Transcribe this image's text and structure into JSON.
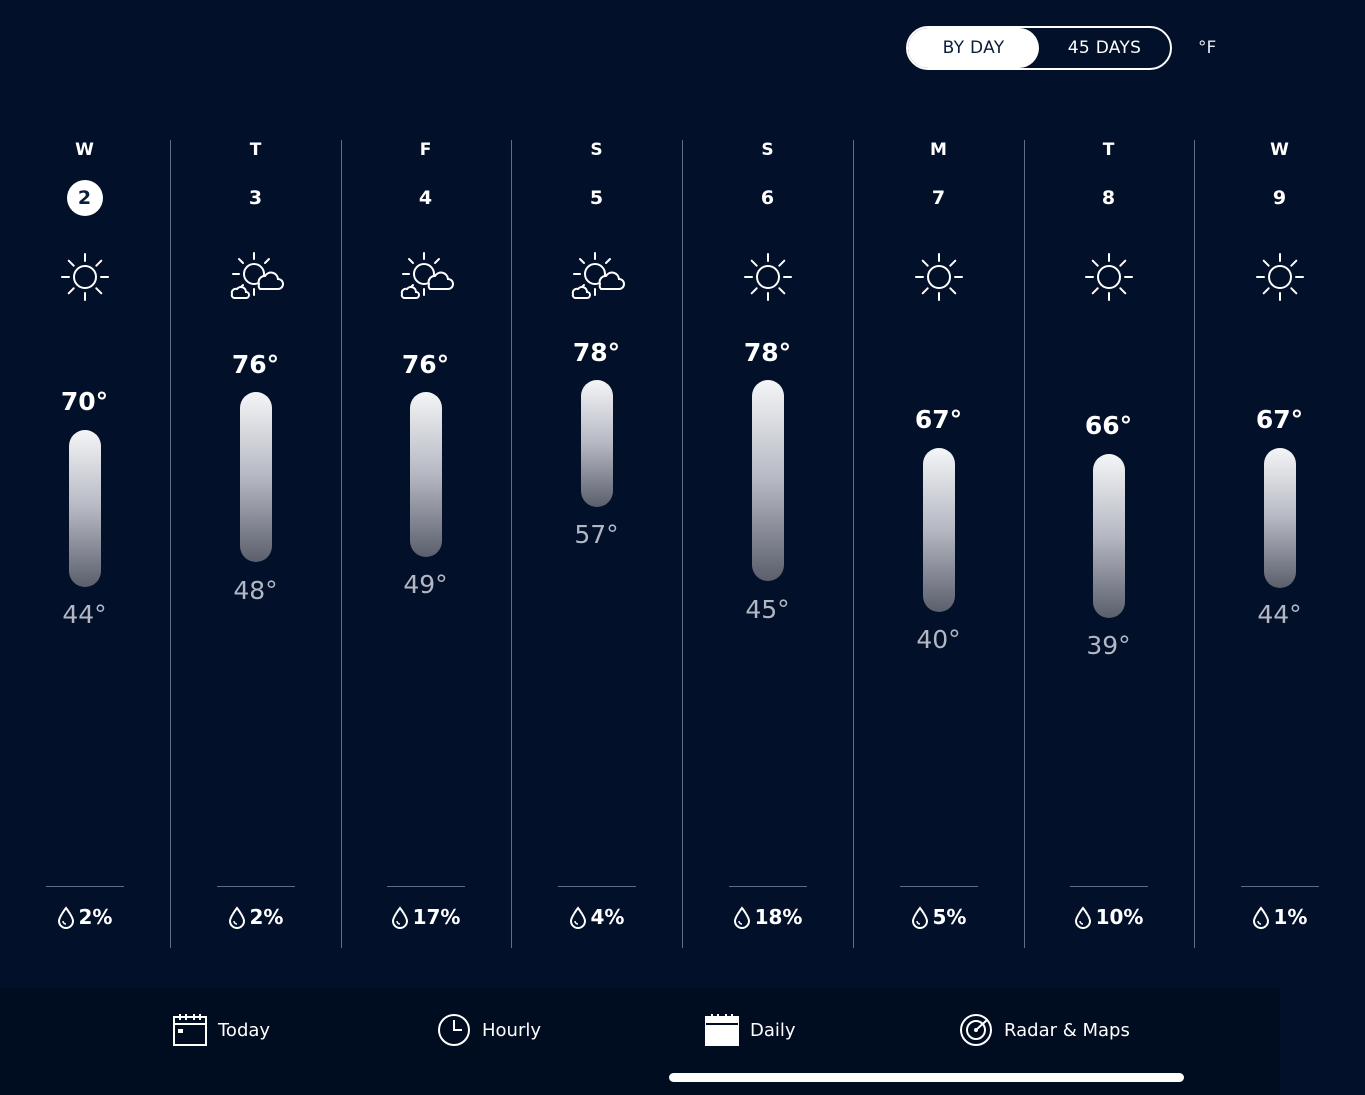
{
  "header": {
    "toggle_by_day": "BY DAY",
    "toggle_45_days": "45 DAYS",
    "unit": "°F"
  },
  "days": [
    {
      "dow": "W",
      "date": "2",
      "condition": "sunny",
      "high": "70°",
      "low": "44°",
      "precip": "2%",
      "selected": true
    },
    {
      "dow": "T",
      "date": "3",
      "condition": "partly-cloudy",
      "high": "76°",
      "low": "48°",
      "precip": "2%"
    },
    {
      "dow": "F",
      "date": "4",
      "condition": "partly-cloudy",
      "high": "76°",
      "low": "49°",
      "precip": "17%"
    },
    {
      "dow": "S",
      "date": "5",
      "condition": "partly-cloudy",
      "high": "78°",
      "low": "57°",
      "precip": "4%"
    },
    {
      "dow": "S",
      "date": "6",
      "condition": "sunny",
      "high": "78°",
      "low": "45°",
      "precip": "18%"
    },
    {
      "dow": "M",
      "date": "7",
      "condition": "sunny",
      "high": "67°",
      "low": "40°",
      "precip": "5%"
    },
    {
      "dow": "T",
      "date": "8",
      "condition": "sunny",
      "high": "66°",
      "low": "39°",
      "precip": "10%"
    },
    {
      "dow": "W",
      "date": "9",
      "condition": "sunny",
      "high": "67°",
      "low": "44°",
      "precip": "1%"
    }
  ],
  "nav": {
    "today": "Today",
    "hourly": "Hourly",
    "daily": "Daily",
    "radar": "Radar & Maps"
  },
  "colors": {
    "background": "#03102a",
    "nav_background": "#000c20",
    "separator": "#5f6d85",
    "low_temp": "#b2b7c3"
  }
}
